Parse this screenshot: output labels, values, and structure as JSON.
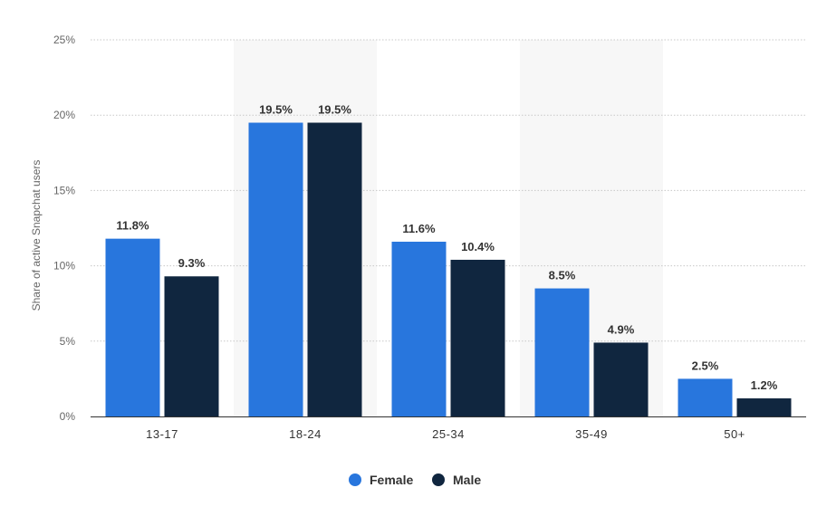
{
  "chart_data": {
    "type": "bar",
    "categories": [
      "13-17",
      "18-24",
      "25-34",
      "35-49",
      "50+"
    ],
    "series": [
      {
        "name": "Female",
        "color": "#2876dd",
        "values": [
          11.8,
          19.5,
          11.6,
          8.5,
          2.5
        ]
      },
      {
        "name": "Male",
        "color": "#10263f",
        "values": [
          9.3,
          19.5,
          10.4,
          4.9,
          1.2
        ]
      }
    ],
    "data_labels": [
      [
        "11.8%",
        "19.5%",
        "11.6%",
        "8.5%",
        "2.5%"
      ],
      [
        "9.3%",
        "19.5%",
        "10.4%",
        "4.9%",
        "1.2%"
      ]
    ],
    "y_ticks": [
      "0%",
      "5%",
      "10%",
      "15%",
      "20%",
      "25%"
    ],
    "ylabel": "Share of active Snapchat users",
    "xlabel": "",
    "title": "",
    "ylim": [
      0,
      25
    ],
    "grid": true,
    "legend_position": "bottom-center",
    "shaded_categories": [
      1,
      3
    ],
    "shade_color": "#f7f7f7"
  }
}
